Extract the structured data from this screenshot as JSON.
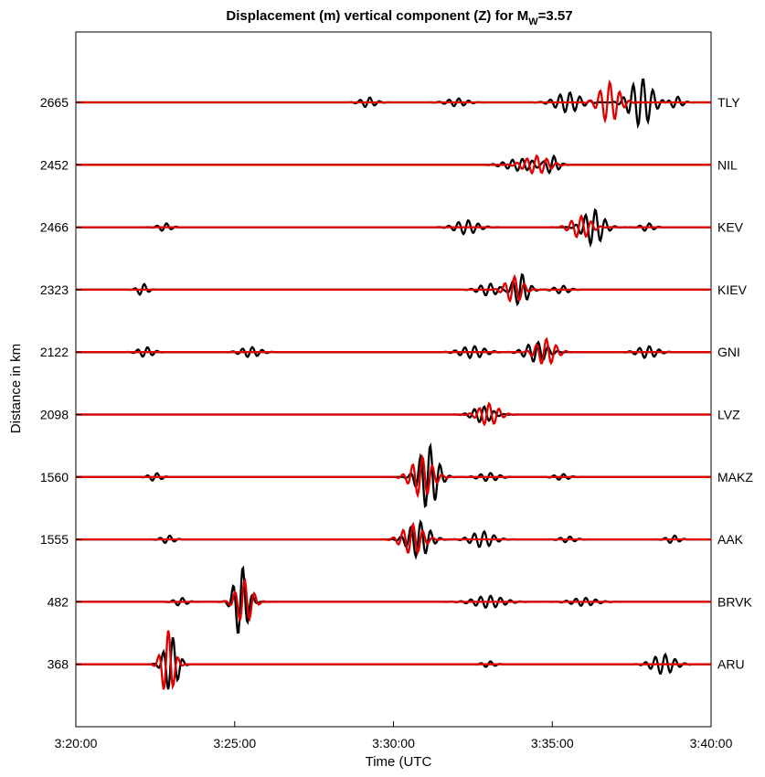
{
  "chart_data": {
    "type": "line",
    "title": {
      "prefix": "Displacement (m) vertical component (Z) for M",
      "subscript": "W",
      "suffix": "=3.57"
    },
    "xlabel": "Time (UTC",
    "ylabel": "Distance in km",
    "x_tick_labels": [
      "3:20:00",
      "3:25:00",
      "3:30:00",
      "3:35:00",
      "3:40:00"
    ],
    "x_ticks_minutes": [
      0,
      5,
      10,
      15,
      20
    ],
    "xlim_minutes": [
      0,
      20
    ],
    "grid": false,
    "line_colors": {
      "observed": "#000000",
      "synthetic": "#e00000"
    },
    "traces": [
      {
        "station": "TLY",
        "distance": "2665",
        "observed_packets": [
          [
            9.2,
            0.25,
            0.6
          ],
          [
            12.0,
            0.2,
            0.8
          ],
          [
            15.5,
            0.5,
            1.0
          ],
          [
            17.8,
            1.2,
            0.9
          ],
          [
            18.9,
            0.3,
            0.5
          ]
        ],
        "synthetic_packets": [
          [
            16.8,
            1.0,
            0.8
          ]
        ]
      },
      {
        "station": "NIL",
        "distance": "2452",
        "observed_packets": [
          [
            14.0,
            0.3,
            1.2
          ],
          [
            15.0,
            0.45,
            0.5
          ]
        ],
        "synthetic_packets": [
          [
            14.5,
            0.45,
            1.0
          ]
        ]
      },
      {
        "station": "KEV",
        "distance": "2466",
        "observed_packets": [
          [
            2.8,
            0.2,
            0.5
          ],
          [
            12.3,
            0.35,
            0.9
          ],
          [
            16.3,
            0.9,
            0.8
          ],
          [
            18.0,
            0.2,
            0.5
          ]
        ],
        "synthetic_packets": [
          [
            15.9,
            0.55,
            0.8
          ]
        ]
      },
      {
        "station": "KIEV",
        "distance": "2323",
        "observed_packets": [
          [
            2.1,
            0.3,
            0.4
          ],
          [
            13.0,
            0.3,
            0.8
          ],
          [
            14.0,
            0.8,
            0.6
          ],
          [
            15.3,
            0.2,
            0.6
          ]
        ],
        "synthetic_packets": [
          [
            13.8,
            0.65,
            0.7
          ]
        ]
      },
      {
        "station": "GNI",
        "distance": "2122",
        "observed_packets": [
          [
            2.2,
            0.25,
            0.6
          ],
          [
            5.5,
            0.25,
            0.8
          ],
          [
            12.5,
            0.3,
            1.0
          ],
          [
            14.5,
            0.5,
            0.9
          ],
          [
            18.0,
            0.3,
            0.8
          ]
        ],
        "synthetic_packets": [
          [
            14.8,
            0.65,
            0.8
          ]
        ]
      },
      {
        "station": "LVZ",
        "distance": "2098",
        "observed_packets": [
          [
            12.8,
            0.4,
            0.8
          ]
        ],
        "synthetic_packets": [
          [
            13.0,
            0.55,
            0.8
          ]
        ]
      },
      {
        "station": "MAKZ",
        "distance": "1560",
        "observed_packets": [
          [
            2.5,
            0.2,
            0.5
          ],
          [
            11.1,
            1.6,
            0.75
          ],
          [
            13.0,
            0.2,
            0.8
          ],
          [
            15.3,
            0.15,
            0.6
          ]
        ],
        "synthetic_packets": [
          [
            10.9,
            1.0,
            0.85
          ]
        ]
      },
      {
        "station": "AAK",
        "distance": "1555",
        "observed_packets": [
          [
            2.9,
            0.2,
            0.5
          ],
          [
            10.8,
            0.9,
            0.85
          ],
          [
            12.8,
            0.4,
            0.9
          ],
          [
            15.5,
            0.15,
            0.6
          ],
          [
            18.8,
            0.2,
            0.5
          ]
        ],
        "synthetic_packets": [
          [
            10.6,
            0.75,
            0.85
          ]
        ]
      },
      {
        "station": "BRVK",
        "distance": "482",
        "observed_packets": [
          [
            3.3,
            0.2,
            0.5
          ],
          [
            5.2,
            1.8,
            0.55
          ],
          [
            13.0,
            0.3,
            1.2
          ],
          [
            16.0,
            0.2,
            1.0
          ]
        ],
        "synthetic_packets": [
          [
            5.3,
            1.1,
            0.65
          ]
        ]
      },
      {
        "station": "ARU",
        "distance": "368",
        "observed_packets": [
          [
            3.0,
            1.4,
            0.55
          ],
          [
            13.0,
            0.15,
            0.5
          ],
          [
            18.5,
            0.5,
            0.9
          ]
        ],
        "synthetic_packets": [
          [
            2.9,
            1.7,
            0.5
          ]
        ]
      }
    ]
  }
}
